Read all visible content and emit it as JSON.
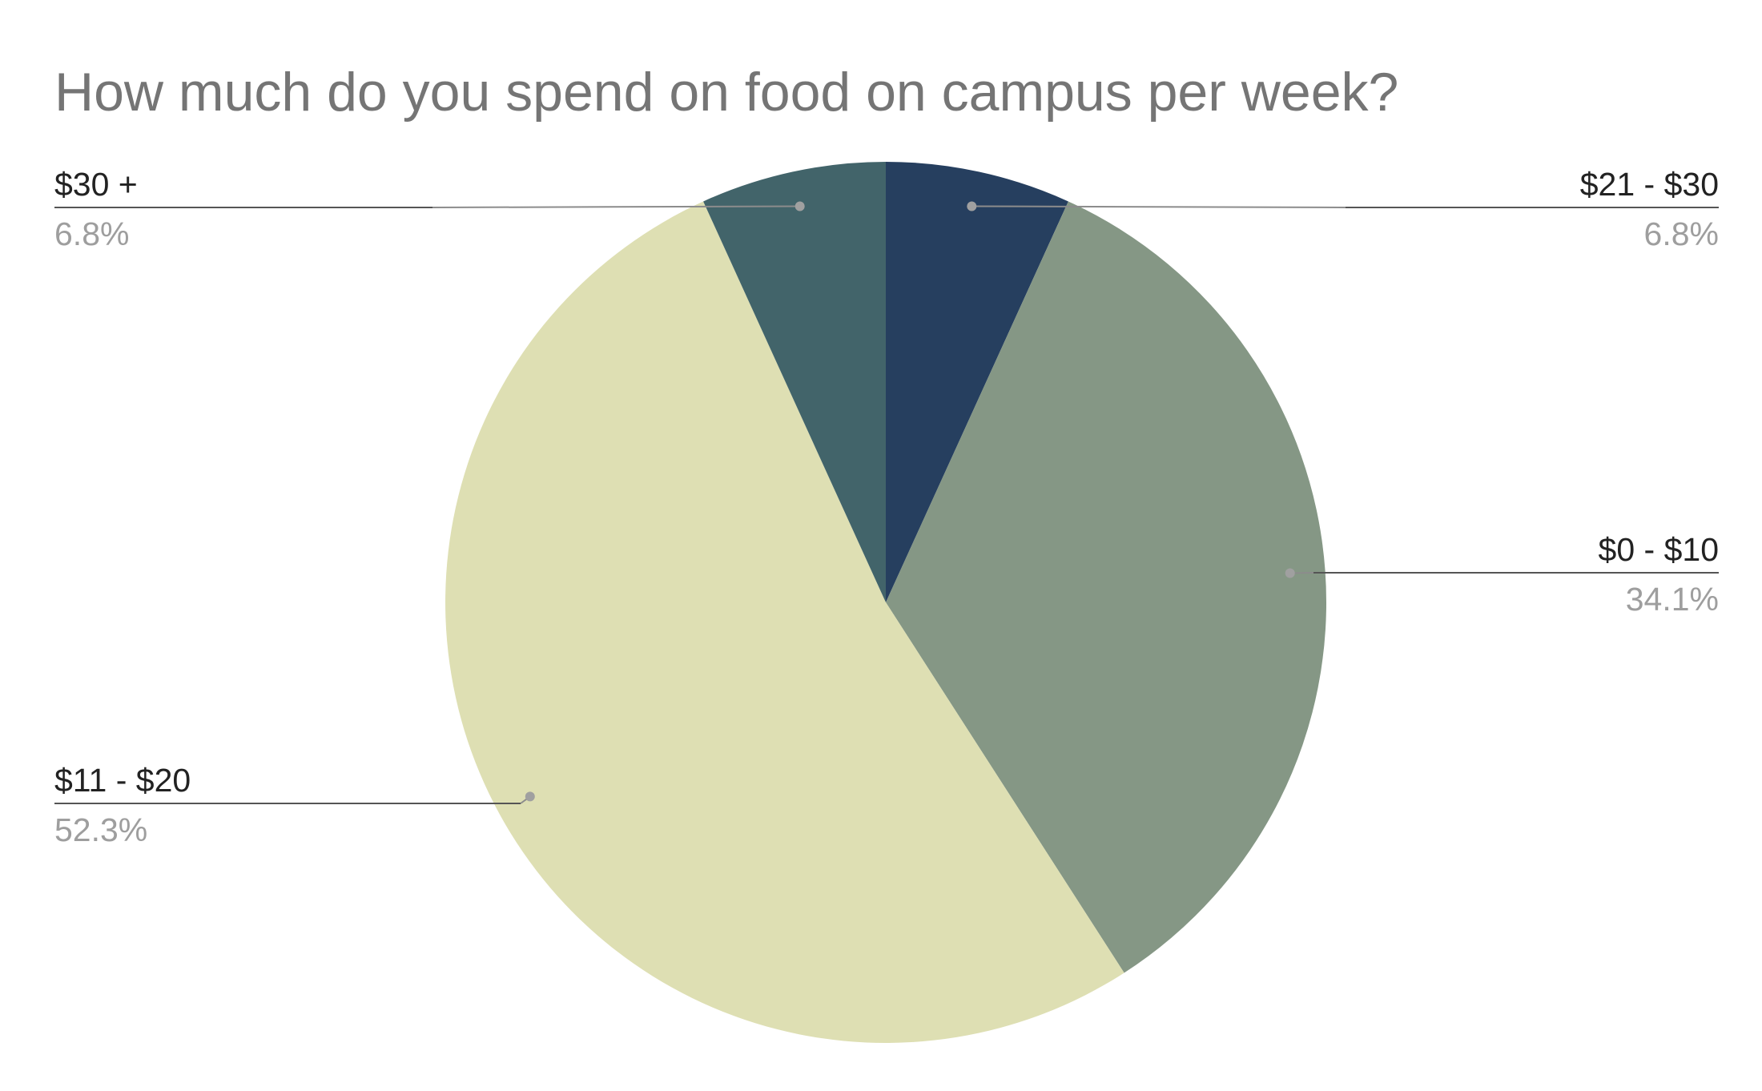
{
  "chart_data": {
    "type": "pie",
    "title": "How much do you spend on food on campus per week?",
    "start_angle_deg": 0,
    "direction": "clockwise",
    "slices": [
      {
        "label": "$21 - $30",
        "percent_label": "6.8%",
        "value": 6.8,
        "color": "#263f5f"
      },
      {
        "label": "$0 - $10",
        "percent_label": "34.1%",
        "value": 34.1,
        "color": "#859785"
      },
      {
        "label": "$11 - $20",
        "percent_label": "52.3%",
        "value": 52.3,
        "color": "#dedfb3"
      },
      {
        "label": "$30 +",
        "percent_label": "6.8%",
        "value": 6.8,
        "color": "#42646a"
      }
    ],
    "legend": "none",
    "data_labels": "outside with leader lines"
  }
}
